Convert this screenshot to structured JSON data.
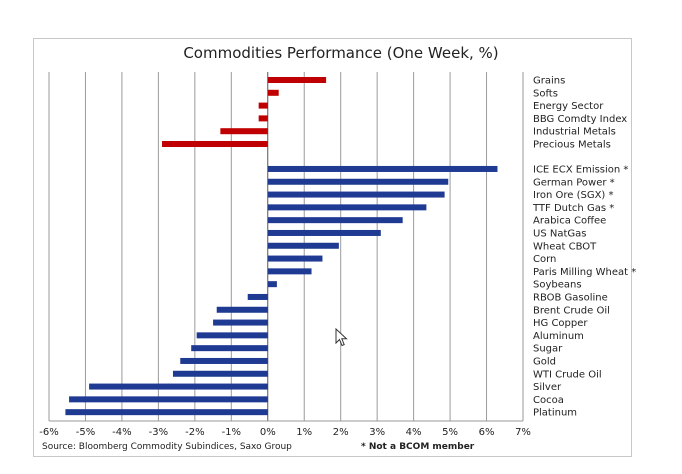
{
  "chart_data": {
    "type": "bar",
    "orientation": "horizontal",
    "title": "Commodities Performance (One Week, %)",
    "xlim": [
      -6,
      7
    ],
    "xticks": [
      "-6%",
      "-5%",
      "-4%",
      "-3%",
      "-2%",
      "-1%",
      "0%",
      "1%",
      "2%",
      "3%",
      "4%",
      "5%",
      "6%",
      "7%"
    ],
    "grid": "vertical",
    "groups": [
      {
        "color": "#c00000",
        "categories": [
          "Grains",
          "Softs",
          "Energy Sector",
          "BBG Comdty Index",
          "Industrial Metals",
          "Precious Metals"
        ],
        "values": [
          1.6,
          0.3,
          -0.25,
          -0.25,
          -1.3,
          -2.9
        ]
      },
      {
        "color": "#1f3a93",
        "categories": [
          "ICE ECX Emission *",
          "German Power *",
          "Iron Ore (SGX) *",
          "TTF Dutch Gas *",
          "Arabica Coffee",
          "US NatGas",
          "Wheat CBOT",
          "Corn",
          "Paris Milling Wheat *",
          "Soybeans",
          "RBOB Gasoline",
          "Brent Crude Oil",
          "HG Copper",
          "Aluminum",
          "Sugar",
          "Gold",
          "WTI Crude Oil",
          "Silver",
          "Cocoa",
          "Platinum"
        ],
        "values": [
          6.3,
          4.95,
          4.85,
          4.35,
          3.7,
          3.1,
          1.95,
          1.5,
          1.2,
          0.25,
          -0.55,
          -1.4,
          -1.5,
          -1.95,
          -2.1,
          -2.4,
          -2.6,
          -4.9,
          -5.45,
          -5.55
        ]
      }
    ]
  },
  "footer": {
    "source": "Source: Bloomberg Commodity Subindices, Saxo Group",
    "note": "* Not a BCOM member"
  }
}
